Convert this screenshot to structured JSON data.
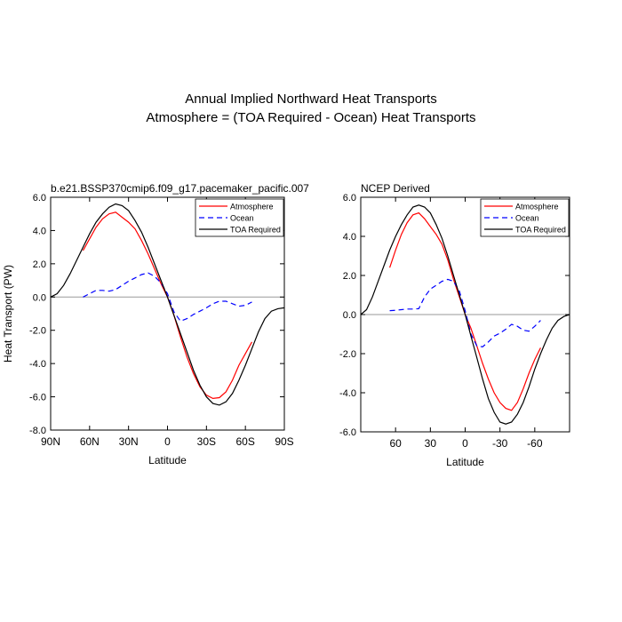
{
  "figure": {
    "title_line1": "Annual Implied Northward Heat Transports",
    "title_line2": "Atmosphere = (TOA Required - Ocean) Heat Transports"
  },
  "colors": {
    "atmosphere": "#ff0000",
    "ocean": "#0000ff",
    "toa": "#000000",
    "zero_line": "#999999"
  },
  "chart_data": [
    {
      "type": "line",
      "title": "b.e21.BSSP370cmip6.f09_g17.pacemaker_pacific.007",
      "xlabel": "Latitude",
      "ylabel": "Heat Transport (PW)",
      "xlim": [
        90,
        -90
      ],
      "ylim": [
        -8,
        6
      ],
      "xticks": [
        90,
        60,
        30,
        0,
        -30,
        -60,
        -90
      ],
      "xtick_labels": [
        "90N",
        "60N",
        "30N",
        "0",
        "30S",
        "60S",
        "90S"
      ],
      "yticks": [
        -8,
        -6,
        -4,
        -2,
        0,
        2,
        4,
        6
      ],
      "ytick_labels": [
        "-8.0",
        "-6.0",
        "-4.0",
        "-2.0",
        "0.0",
        "2.0",
        "4.0",
        "6.0"
      ],
      "legend_position": "top-right",
      "series": [
        {
          "name": "Atmosphere",
          "style": "solid",
          "color": "#ff0000",
          "x": [
            65,
            60,
            55,
            50,
            45,
            40,
            35,
            30,
            25,
            20,
            15,
            10,
            5,
            0,
            -5,
            -10,
            -15,
            -20,
            -25,
            -30,
            -35,
            -40,
            -45,
            -50,
            -55,
            -60,
            -65
          ],
          "y": [
            2.8,
            3.5,
            4.2,
            4.7,
            5.0,
            5.1,
            4.8,
            4.5,
            4.1,
            3.4,
            2.6,
            1.7,
            0.8,
            0.0,
            -1.1,
            -2.4,
            -3.6,
            -4.6,
            -5.4,
            -5.9,
            -6.1,
            -6.05,
            -5.7,
            -5.0,
            -4.1,
            -3.4,
            -2.7
          ]
        },
        {
          "name": "Ocean",
          "style": "dashed",
          "color": "#0000ff",
          "x": [
            65,
            60,
            55,
            50,
            45,
            40,
            35,
            30,
            25,
            20,
            15,
            10,
            5,
            0,
            -5,
            -10,
            -15,
            -20,
            -25,
            -30,
            -35,
            -40,
            -45,
            -50,
            -55,
            -60,
            -65
          ],
          "y": [
            0.0,
            0.2,
            0.4,
            0.4,
            0.35,
            0.45,
            0.7,
            0.95,
            1.15,
            1.35,
            1.45,
            1.25,
            0.85,
            0.2,
            -0.9,
            -1.45,
            -1.3,
            -1.05,
            -0.85,
            -0.65,
            -0.4,
            -0.25,
            -0.25,
            -0.4,
            -0.55,
            -0.5,
            -0.3
          ]
        },
        {
          "name": "TOA Required",
          "style": "solid",
          "color": "#000000",
          "x": [
            90,
            85,
            80,
            75,
            70,
            65,
            60,
            55,
            50,
            45,
            40,
            35,
            30,
            25,
            20,
            15,
            10,
            5,
            0,
            -5,
            -10,
            -15,
            -20,
            -25,
            -30,
            -35,
            -40,
            -45,
            -50,
            -55,
            -60,
            -65,
            -70,
            -75,
            -80,
            -85,
            -90
          ],
          "y": [
            0.0,
            0.2,
            0.7,
            1.4,
            2.2,
            3.0,
            3.8,
            4.5,
            5.0,
            5.4,
            5.6,
            5.5,
            5.2,
            4.6,
            3.9,
            3.0,
            2.0,
            1.0,
            0.0,
            -1.1,
            -2.2,
            -3.3,
            -4.4,
            -5.3,
            -6.0,
            -6.4,
            -6.5,
            -6.3,
            -5.8,
            -5.0,
            -4.1,
            -3.1,
            -2.1,
            -1.3,
            -0.85,
            -0.7,
            -0.65
          ]
        }
      ]
    },
    {
      "type": "line",
      "title": "NCEP Derived",
      "xlabel": "Latitude",
      "ylabel": "",
      "xlim": [
        90,
        -90
      ],
      "ylim": [
        -6,
        6
      ],
      "xticks": [
        60,
        30,
        0,
        -30,
        -60
      ],
      "xtick_labels": [
        "60",
        "30",
        "0",
        "-30",
        "-60"
      ],
      "yticks": [
        -6,
        -4,
        -2,
        0,
        2,
        4,
        6
      ],
      "ytick_labels": [
        "-6.0",
        "-4.0",
        "-2.0",
        "0.0",
        "2.0",
        "4.0",
        "6.0"
      ],
      "legend_position": "top-right",
      "series": [
        {
          "name": "Atmosphere",
          "style": "solid",
          "color": "#ff0000",
          "x": [
            65,
            60,
            55,
            50,
            45,
            40,
            35,
            30,
            25,
            20,
            15,
            10,
            5,
            0,
            -5,
            -10,
            -15,
            -20,
            -25,
            -30,
            -35,
            -40,
            -45,
            -50,
            -55,
            -60,
            -65
          ],
          "y": [
            2.4,
            3.3,
            4.1,
            4.7,
            5.1,
            5.2,
            4.9,
            4.5,
            4.1,
            3.6,
            2.8,
            1.8,
            0.9,
            0.0,
            -0.7,
            -1.6,
            -2.5,
            -3.3,
            -4.0,
            -4.5,
            -4.8,
            -4.9,
            -4.5,
            -3.8,
            -3.0,
            -2.3,
            -1.7
          ]
        },
        {
          "name": "Ocean",
          "style": "dashed",
          "color": "#0000ff",
          "x": [
            65,
            60,
            55,
            50,
            45,
            40,
            35,
            30,
            25,
            20,
            15,
            10,
            5,
            0,
            -5,
            -10,
            -15,
            -20,
            -25,
            -30,
            -35,
            -40,
            -45,
            -50,
            -55,
            -60,
            -65
          ],
          "y": [
            0.2,
            0.22,
            0.25,
            0.28,
            0.28,
            0.3,
            0.9,
            1.3,
            1.5,
            1.7,
            1.8,
            1.7,
            1.2,
            0.2,
            -1.0,
            -1.6,
            -1.65,
            -1.4,
            -1.1,
            -0.95,
            -0.75,
            -0.5,
            -0.6,
            -0.8,
            -0.85,
            -0.6,
            -0.3
          ]
        },
        {
          "name": "TOA Required",
          "style": "solid",
          "color": "#000000",
          "x": [
            90,
            85,
            80,
            75,
            70,
            65,
            60,
            55,
            50,
            45,
            40,
            35,
            30,
            25,
            20,
            15,
            10,
            5,
            0,
            -5,
            -10,
            -15,
            -20,
            -25,
            -30,
            -35,
            -40,
            -45,
            -50,
            -55,
            -60,
            -65,
            -70,
            -75,
            -80,
            -85,
            -90
          ],
          "y": [
            0.0,
            0.25,
            0.9,
            1.7,
            2.5,
            3.3,
            4.0,
            4.6,
            5.1,
            5.5,
            5.6,
            5.5,
            5.2,
            4.6,
            3.9,
            3.0,
            2.0,
            1.0,
            0.0,
            -1.1,
            -2.2,
            -3.3,
            -4.3,
            -5.0,
            -5.5,
            -5.6,
            -5.5,
            -5.1,
            -4.5,
            -3.7,
            -2.8,
            -2.0,
            -1.3,
            -0.7,
            -0.3,
            -0.1,
            0.0
          ]
        }
      ]
    }
  ]
}
